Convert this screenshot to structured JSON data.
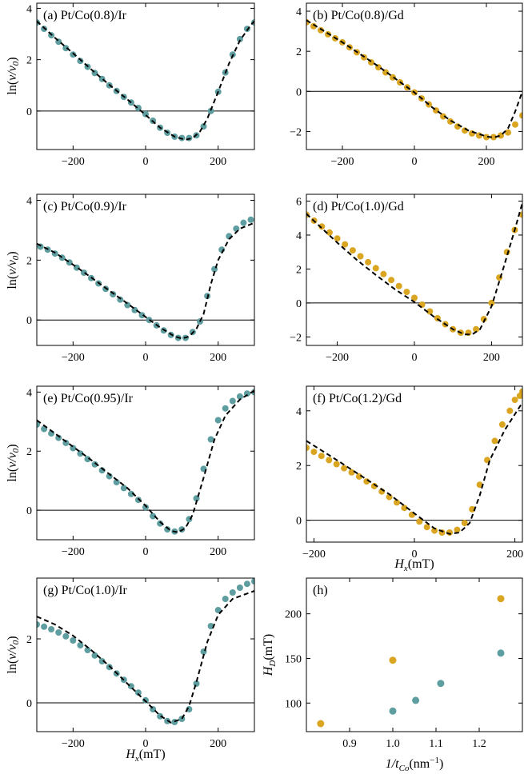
{
  "colors": {
    "ir": "#5f9ea0",
    "gd": "#daa520"
  },
  "chart_data": [
    {
      "type": "scatter",
      "panel": "a",
      "title": "(a) Pt/Co(0.8)/Ir",
      "color_key": "ir",
      "xlabel": "",
      "ylabel": "ln(v/v0)",
      "xlim": [
        -300,
        300
      ],
      "ylim": [
        -1.5,
        4.2
      ],
      "xticks": [
        -200,
        0,
        200
      ],
      "yticks": [
        0,
        2,
        4
      ],
      "zero_line": true,
      "series": [
        {
          "kind": "points",
          "x": [
            -300,
            -280,
            -260,
            -240,
            -220,
            -200,
            -180,
            -160,
            -140,
            -120,
            -100,
            -80,
            -60,
            -40,
            -20,
            0,
            20,
            40,
            60,
            80,
            100,
            120,
            140,
            160,
            180,
            200,
            220,
            240,
            260,
            280,
            300
          ],
          "y": [
            3.45,
            3.2,
            2.95,
            2.7,
            2.45,
            2.2,
            1.95,
            1.72,
            1.48,
            1.25,
            1.0,
            0.78,
            0.55,
            0.33,
            0.12,
            -0.12,
            -0.38,
            -0.65,
            -0.85,
            -1.0,
            -1.05,
            -1.05,
            -0.95,
            -0.6,
            0.0,
            0.75,
            1.5,
            2.2,
            2.8,
            3.2,
            3.45
          ]
        },
        {
          "kind": "fit",
          "x": [
            -300,
            -250,
            -200,
            -150,
            -100,
            -50,
            0,
            40,
            80,
            110,
            130,
            150,
            170,
            200,
            230,
            260,
            290,
            300
          ],
          "y": [
            3.5,
            2.85,
            2.25,
            1.62,
            1.02,
            0.45,
            -0.15,
            -0.65,
            -1.0,
            -1.12,
            -1.05,
            -0.8,
            -0.3,
            0.75,
            1.85,
            2.75,
            3.35,
            3.5
          ]
        }
      ]
    },
    {
      "type": "scatter",
      "panel": "b",
      "title": "(b) Pt/Co(0.8)/Gd",
      "color_key": "gd",
      "xlabel": "",
      "ylabel": "",
      "xlim": [
        -300,
        300
      ],
      "ylim": [
        -2.9,
        4.4
      ],
      "xticks": [
        -200,
        0,
        200
      ],
      "yticks": [
        -2,
        0,
        2,
        4
      ],
      "zero_line": true,
      "series": [
        {
          "kind": "points",
          "x": [
            -300,
            -280,
            -260,
            -240,
            -220,
            -200,
            -180,
            -160,
            -140,
            -120,
            -100,
            -80,
            -60,
            -40,
            -20,
            0,
            20,
            40,
            60,
            80,
            100,
            120,
            140,
            160,
            180,
            200,
            220,
            240,
            260,
            280,
            300
          ],
          "y": [
            3.45,
            3.25,
            3.05,
            2.85,
            2.65,
            2.45,
            2.2,
            1.95,
            1.7,
            1.45,
            1.2,
            0.95,
            0.7,
            0.45,
            0.2,
            -0.05,
            -0.35,
            -0.65,
            -0.95,
            -1.25,
            -1.5,
            -1.75,
            -1.95,
            -2.1,
            -2.2,
            -2.28,
            -2.28,
            -2.2,
            -2.05,
            -1.65,
            -1.2
          ]
        },
        {
          "kind": "fit",
          "x": [
            -300,
            -250,
            -200,
            -150,
            -100,
            -50,
            0,
            50,
            100,
            150,
            200,
            220,
            240,
            260,
            280,
            300
          ],
          "y": [
            3.55,
            3.0,
            2.45,
            1.85,
            1.25,
            0.6,
            -0.05,
            -0.8,
            -1.45,
            -1.95,
            -2.25,
            -2.3,
            -2.2,
            -1.85,
            -1.0,
            0.0
          ]
        }
      ]
    },
    {
      "type": "scatter",
      "panel": "c",
      "title": "(c) Pt/Co(0.9)/Ir",
      "color_key": "ir",
      "xlabel": "",
      "ylabel": "ln(v/v0)",
      "xlim": [
        -300,
        300
      ],
      "ylim": [
        -0.85,
        4.2
      ],
      "xticks": [
        -200,
        0,
        200
      ],
      "yticks": [
        0,
        2,
        4
      ],
      "zero_line": true,
      "series": [
        {
          "kind": "points",
          "x": [
            -290,
            -270,
            -250,
            -230,
            -210,
            -190,
            -170,
            -150,
            -130,
            -110,
            -90,
            -70,
            -50,
            -30,
            -10,
            10,
            30,
            50,
            70,
            90,
            110,
            130,
            150,
            170,
            190,
            210,
            230,
            250,
            270,
            290
          ],
          "y": [
            2.45,
            2.35,
            2.22,
            2.08,
            1.92,
            1.75,
            1.58,
            1.4,
            1.22,
            1.04,
            0.86,
            0.68,
            0.5,
            0.33,
            0.16,
            0.0,
            -0.18,
            -0.35,
            -0.5,
            -0.6,
            -0.6,
            -0.4,
            -0.05,
            0.8,
            1.7,
            2.35,
            2.8,
            3.05,
            3.25,
            3.35
          ]
        },
        {
          "kind": "fit",
          "x": [
            -300,
            -250,
            -200,
            -150,
            -100,
            -50,
            0,
            40,
            80,
            100,
            120,
            140,
            160,
            180,
            200,
            230,
            260,
            300
          ],
          "y": [
            2.55,
            2.25,
            1.85,
            1.42,
            0.98,
            0.55,
            0.1,
            -0.25,
            -0.55,
            -0.62,
            -0.55,
            -0.3,
            0.2,
            1.2,
            2.0,
            2.7,
            3.05,
            3.25
          ]
        }
      ]
    },
    {
      "type": "scatter",
      "panel": "d",
      "title": "(d) Pt/Co(1.0)/Gd",
      "color_key": "gd",
      "xlabel": "",
      "ylabel": "",
      "xlim": [
        -280,
        280
      ],
      "ylim": [
        -2.5,
        6.4
      ],
      "xticks": [
        -200,
        0,
        200
      ],
      "yticks": [
        -2,
        0,
        2,
        4,
        6
      ],
      "zero_line": true,
      "series": [
        {
          "kind": "points",
          "x": [
            -280,
            -260,
            -240,
            -220,
            -200,
            -180,
            -160,
            -140,
            -120,
            -100,
            -80,
            -60,
            -40,
            -20,
            0,
            20,
            40,
            60,
            80,
            100,
            120,
            140,
            160,
            180,
            200,
            220,
            240,
            260,
            280
          ],
          "y": [
            5.2,
            4.85,
            4.5,
            4.15,
            3.8,
            3.45,
            3.1,
            2.75,
            2.4,
            2.05,
            1.7,
            1.35,
            1.0,
            0.65,
            0.3,
            -0.1,
            -0.5,
            -0.9,
            -1.25,
            -1.55,
            -1.75,
            -1.75,
            -1.55,
            -0.95,
            0.0,
            1.5,
            3.0,
            4.3,
            5.2
          ]
        },
        {
          "kind": "fit",
          "x": [
            -280,
            -200,
            -150,
            -100,
            -50,
            0,
            50,
            100,
            130,
            150,
            170,
            200,
            230,
            260,
            280
          ],
          "y": [
            5.25,
            3.55,
            2.55,
            1.65,
            0.8,
            0.05,
            -0.8,
            -1.55,
            -1.85,
            -1.85,
            -1.55,
            -0.2,
            2.0,
            4.3,
            5.9
          ]
        }
      ]
    },
    {
      "type": "scatter",
      "panel": "e",
      "title": "(e) Pt/Co(0.95)/Ir",
      "color_key": "ir",
      "xlabel": "",
      "ylabel": "ln(v/v0)",
      "xlim": [
        -300,
        300
      ],
      "ylim": [
        -1.0,
        4.2
      ],
      "xticks": [
        -200,
        0,
        200
      ],
      "yticks": [
        0,
        2,
        4
      ],
      "zero_line": true,
      "series": [
        {
          "kind": "points",
          "x": [
            -300,
            -280,
            -260,
            -240,
            -220,
            -200,
            -180,
            -160,
            -140,
            -120,
            -100,
            -80,
            -60,
            -40,
            -20,
            0,
            20,
            40,
            60,
            80,
            100,
            120,
            140,
            160,
            180,
            200,
            220,
            240,
            260,
            280,
            300
          ],
          "y": [
            2.9,
            2.75,
            2.6,
            2.45,
            2.28,
            2.1,
            1.92,
            1.73,
            1.55,
            1.35,
            1.15,
            0.95,
            0.75,
            0.55,
            0.35,
            0.1,
            -0.2,
            -0.45,
            -0.65,
            -0.72,
            -0.65,
            -0.3,
            0.4,
            1.4,
            2.4,
            3.05,
            3.45,
            3.7,
            3.85,
            3.95,
            4.0
          ]
        },
        {
          "kind": "fit",
          "x": [
            -300,
            -250,
            -200,
            -150,
            -100,
            -50,
            0,
            40,
            70,
            90,
            110,
            130,
            160,
            190,
            220,
            260,
            300
          ],
          "y": [
            3.05,
            2.6,
            2.15,
            1.7,
            1.22,
            0.75,
            0.15,
            -0.4,
            -0.7,
            -0.75,
            -0.6,
            -0.15,
            1.1,
            2.4,
            3.2,
            3.75,
            4.05
          ]
        }
      ]
    },
    {
      "type": "scatter",
      "panel": "f",
      "title": "(f) Pt/Co(1.2)/Gd",
      "color_key": "gd",
      "xlabel": "Hx(mT)",
      "ylabel": "",
      "xlim": [
        -215,
        215
      ],
      "ylim": [
        -0.8,
        4.9
      ],
      "xticks": [
        -200,
        0,
        200
      ],
      "yticks": [
        0,
        2,
        4
      ],
      "zero_line": true,
      "series": [
        {
          "kind": "points",
          "x": [
            -215,
            -200,
            -185,
            -170,
            -155,
            -140,
            -125,
            -110,
            -95,
            -80,
            -65,
            -50,
            -35,
            -20,
            -5,
            10,
            25,
            40,
            55,
            70,
            85,
            100,
            115,
            130,
            145,
            160,
            175,
            190,
            200,
            210,
            215
          ],
          "y": [
            2.65,
            2.5,
            2.35,
            2.2,
            2.05,
            1.9,
            1.75,
            1.6,
            1.42,
            1.25,
            1.05,
            0.85,
            0.65,
            0.45,
            0.2,
            -0.05,
            -0.25,
            -0.38,
            -0.45,
            -0.45,
            -0.35,
            -0.1,
            0.4,
            1.3,
            2.2,
            2.9,
            3.5,
            4.0,
            4.4,
            4.55,
            4.7
          ]
        },
        {
          "kind": "fit",
          "x": [
            -215,
            -150,
            -100,
            -50,
            0,
            40,
            70,
            90,
            110,
            130,
            150,
            180,
            215
          ],
          "y": [
            2.9,
            2.15,
            1.55,
            0.95,
            0.25,
            -0.3,
            -0.5,
            -0.45,
            -0.1,
            0.9,
            2.2,
            3.3,
            4.3
          ]
        }
      ]
    },
    {
      "type": "scatter",
      "panel": "g",
      "title": "(g) Pt/Co(1.0)/Ir",
      "color_key": "ir",
      "xlabel": "Hx(mT)",
      "ylabel": "ln(v/v0)",
      "xlim": [
        -300,
        300
      ],
      "ylim": [
        -0.9,
        3.9
      ],
      "xticks": [
        -200,
        0,
        200
      ],
      "yticks": [
        0,
        2
      ],
      "zero_line": true,
      "series": [
        {
          "kind": "points",
          "x": [
            -300,
            -280,
            -260,
            -240,
            -220,
            -200,
            -180,
            -160,
            -140,
            -120,
            -100,
            -80,
            -60,
            -40,
            -20,
            0,
            20,
            40,
            60,
            80,
            100,
            120,
            140,
            160,
            180,
            200,
            220,
            240,
            260,
            280,
            300
          ],
          "y": [
            2.45,
            2.38,
            2.3,
            2.2,
            2.08,
            1.95,
            1.8,
            1.65,
            1.48,
            1.3,
            1.12,
            0.92,
            0.72,
            0.52,
            0.32,
            0.08,
            -0.2,
            -0.42,
            -0.57,
            -0.6,
            -0.5,
            -0.2,
            0.6,
            1.6,
            2.4,
            2.9,
            3.25,
            3.45,
            3.6,
            3.72,
            3.8
          ]
        },
        {
          "kind": "fit",
          "x": [
            -300,
            -250,
            -200,
            -150,
            -100,
            -50,
            0,
            40,
            70,
            100,
            120,
            140,
            170,
            200,
            240,
            300
          ],
          "y": [
            2.7,
            2.45,
            2.1,
            1.65,
            1.15,
            0.6,
            0.05,
            -0.4,
            -0.62,
            -0.5,
            -0.1,
            0.65,
            1.9,
            2.75,
            3.25,
            3.5
          ]
        }
      ]
    },
    {
      "type": "scatter",
      "panel": "h",
      "title": "(h)",
      "color_key": "",
      "xlabel": "1/tCo(nm−1)",
      "ylabel": "HD(mT)",
      "xlim": [
        0.8,
        1.3
      ],
      "ylim": [
        68,
        240
      ],
      "xticks": [
        0.9,
        1.0,
        1.1,
        1.2
      ],
      "xtick_labels": [
        "0.9",
        "1.0",
        "1.1",
        "1.2"
      ],
      "yticks": [
        100,
        150,
        200
      ],
      "zero_line": false,
      "series": [
        {
          "kind": "points",
          "color_key": "gd",
          "x": [
            0.833,
            1.0,
            1.25
          ],
          "y": [
            77,
            148,
            217
          ]
        },
        {
          "kind": "points",
          "color_key": "ir",
          "x": [
            1.0,
            1.053,
            1.111,
            1.25
          ],
          "y": [
            91,
            103,
            122,
            156
          ]
        }
      ]
    }
  ]
}
